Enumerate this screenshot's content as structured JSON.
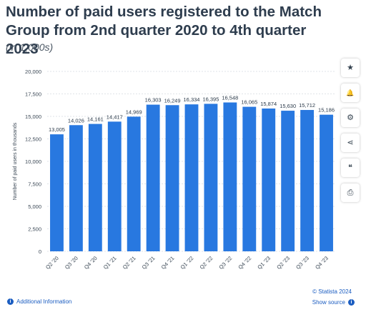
{
  "header": {
    "title": "Number of paid users registered to the Match Group from 2nd quarter 2020 to 4th quarter 2023",
    "subtitle": "(in 1,000s)"
  },
  "toolbar": {
    "items": [
      {
        "icon": "star-icon",
        "glyph": "★"
      },
      {
        "icon": "bell-icon",
        "glyph": "🔔"
      },
      {
        "icon": "gear-icon",
        "glyph": "⚙"
      },
      {
        "icon": "share-icon",
        "glyph": "⋖"
      },
      {
        "icon": "quote-icon",
        "glyph": "❝"
      },
      {
        "icon": "print-icon",
        "glyph": "⎙"
      }
    ]
  },
  "footer": {
    "additional_info": "Additional Information",
    "credit": "© Statista 2024",
    "show_source": "Show source"
  },
  "colors": {
    "bar": "#2878e0",
    "grid": "#dfe3e8",
    "text": "#2b3a4a",
    "link": "#1b5dc1"
  },
  "chart_data": {
    "type": "bar",
    "categories": [
      "Q2 '20",
      "Q3 '20",
      "Q4 '20",
      "Q1 '21",
      "Q2 '21",
      "Q3 '21",
      "Q4 '21",
      "Q1 '22",
      "Q2 '22",
      "Q3 '22",
      "Q4 '22",
      "Q1 '23",
      "Q2 '23",
      "Q3 '23",
      "Q4 '23"
    ],
    "values": [
      13005,
      14026,
      14161,
      14417,
      14969,
      16303,
      16249,
      16334,
      16395,
      16548,
      16065,
      15874,
      15630,
      15712,
      15186
    ],
    "value_labels": [
      "13,005",
      "14,026",
      "14,161",
      "14,417",
      "14,969",
      "16,303",
      "16,249",
      "16,334",
      "16,395",
      "16,548",
      "16,065",
      "15,874",
      "15,630",
      "15,712",
      "15,186"
    ],
    "yticks": [
      0,
      2500,
      5000,
      7500,
      10000,
      12500,
      15000,
      17500,
      20000
    ],
    "ytick_labels": [
      "0",
      "2,500",
      "5,000",
      "7,500",
      "10,000",
      "12,500",
      "15,000",
      "17,500",
      "20,000"
    ],
    "ylim": [
      0,
      20000
    ],
    "ylabel": "Number of paid users in thousands",
    "xlabel": "",
    "grid": true
  }
}
